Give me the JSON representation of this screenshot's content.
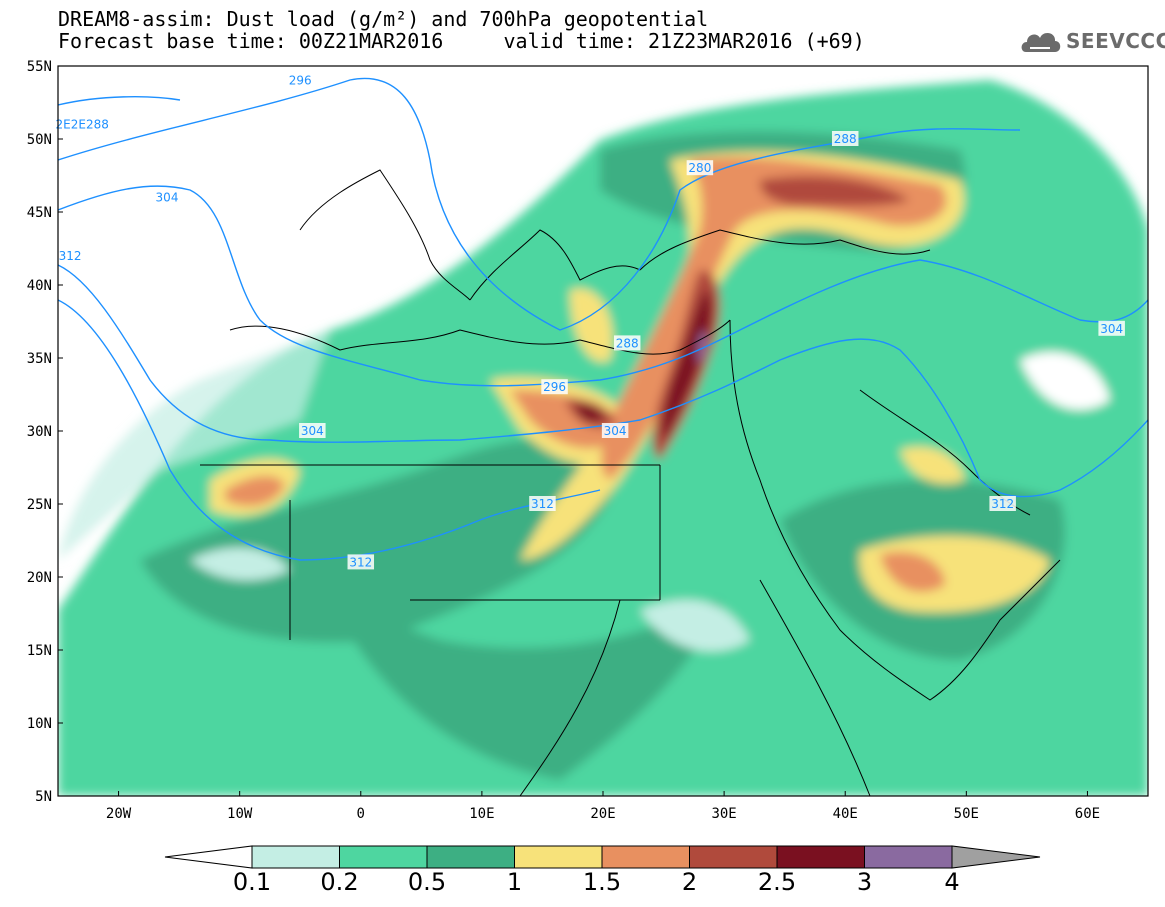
{
  "title": {
    "line1": "DREAM8-assim: Dust load (g/m²) and 700hPa geopotential",
    "line2": "Forecast base time: 00Z21MAR2016     valid time: 21Z23MAR2016 (+69)"
  },
  "logo": {
    "text": "SEEVCCC",
    "icon": "cloud-icon",
    "color": "#6b6b6b"
  },
  "axes": {
    "lat_labels": [
      "55N",
      "50N",
      "45N",
      "40N",
      "35N",
      "30N",
      "25N",
      "20N",
      "15N",
      "10N",
      "5N"
    ],
    "lon_labels": [
      "20W",
      "10W",
      "0",
      "10E",
      "20E",
      "30E",
      "40E",
      "50E",
      "60E"
    ],
    "lat_range": [
      5,
      55
    ],
    "lon_range": [
      -25,
      65
    ]
  },
  "contour_labels": [
    {
      "text": "296",
      "lon": -5,
      "lat": 54
    },
    {
      "text": "2E2E288",
      "lon": -23,
      "lat": 51
    },
    {
      "text": "304",
      "lon": -16,
      "lat": 46
    },
    {
      "text": "312",
      "lon": -24,
      "lat": 42
    },
    {
      "text": "288",
      "lon": 40,
      "lat": 50
    },
    {
      "text": "280",
      "lon": 28,
      "lat": 48
    },
    {
      "text": "288",
      "lon": 22,
      "lat": 36
    },
    {
      "text": "296",
      "lon": 16,
      "lat": 33
    },
    {
      "text": "304",
      "lon": -4,
      "lat": 30
    },
    {
      "text": "304",
      "lon": 21,
      "lat": 30
    },
    {
      "text": "312",
      "lon": 15,
      "lat": 25
    },
    {
      "text": "312",
      "lon": 0,
      "lat": 21
    },
    {
      "text": "304",
      "lon": 62,
      "lat": 37
    },
    {
      "text": "312",
      "lon": 53,
      "lat": 25
    }
  ],
  "colorbar": {
    "ticks": [
      "0.1",
      "0.2",
      "0.5",
      "1",
      "1.5",
      "2",
      "2.5",
      "3",
      "4"
    ],
    "colors": [
      "#c4eee4",
      "#4ed6a0",
      "#3daf83",
      "#f7e27a",
      "#e89060",
      "#b04a3c",
      "#7a1020",
      "#8a6aa0"
    ]
  },
  "legend_colors": {
    "ocean_pale": "#c4eee4",
    "land_green": "#4ed6a0",
    "dark_green": "#3daf83",
    "yellow": "#f7e27a",
    "orange": "#e89060",
    "brown": "#b04a3c",
    "maroon": "#7a1020",
    "purple": "#8a6aa0",
    "contour": "#1e90ff"
  }
}
